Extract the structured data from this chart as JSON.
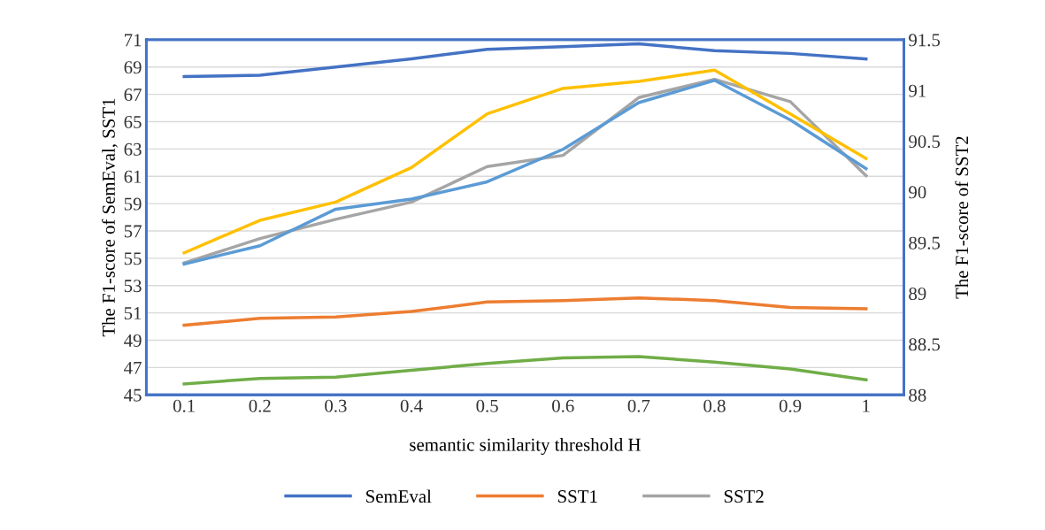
{
  "chart_data": {
    "type": "line",
    "xlabel": "semantic similarity threshold H",
    "ylabel": "The F1-score of SemEval, SST1",
    "y2label": "The F1-score of SST2",
    "categories": [
      "0.1",
      "0.2",
      "0.3",
      "0.4",
      "0.5",
      "0.6",
      "0.7",
      "0.8",
      "0.9",
      "1"
    ],
    "series": [
      {
        "name": "SemEval",
        "color": "#4472c4",
        "values": [
          68.3,
          68.4,
          69.0,
          69.6,
          70.3,
          70.5,
          70.7,
          70.2,
          70.0,
          69.6
        ]
      },
      {
        "name": "SST1",
        "color": "#ed7d31",
        "values": [
          50.1,
          50.6,
          50.7,
          51.1,
          51.8,
          51.9,
          52.1,
          51.9,
          51.4,
          51.3
        ]
      },
      {
        "color": "#70ad47",
        "values": [
          45.8,
          46.2,
          46.3,
          46.8,
          47.3,
          47.7,
          47.8,
          47.4,
          46.9,
          46.1
        ]
      },
      {
        "name": "SST2",
        "color": "#a5a5a5",
        "axis": "y2",
        "values": [
          89.3,
          89.54,
          89.73,
          89.9,
          90.25,
          90.36,
          90.93,
          91.11,
          90.89,
          90.16
        ]
      },
      {
        "color": "#ffc000",
        "axis": "y2",
        "values": [
          89.4,
          89.72,
          89.9,
          90.24,
          90.77,
          91.02,
          91.09,
          91.2,
          90.77,
          90.33
        ]
      },
      {
        "color": "#5b9bd5",
        "axis": "y2",
        "values": [
          89.29,
          89.47,
          89.83,
          89.93,
          90.1,
          90.42,
          90.88,
          91.1,
          90.71,
          90.23
        ]
      }
    ],
    "ylim": [
      45,
      71
    ],
    "yticks": [
      45,
      47,
      49,
      51,
      53,
      55,
      57,
      59,
      61,
      63,
      65,
      67,
      69,
      71
    ],
    "y2lim": [
      88,
      91.5
    ],
    "y2ticks": [
      {
        "value": 88,
        "label": "88"
      },
      {
        "value": 88.5,
        "label": "88.5"
      },
      {
        "value": 89,
        "label": "89"
      },
      {
        "value": 89.5,
        "label": "89.5"
      },
      {
        "value": 90,
        "label": "90"
      },
      {
        "value": 90.5,
        "label": "90.5"
      },
      {
        "value": 91,
        "label": "91"
      },
      {
        "value": 91.5,
        "label": "91.5"
      }
    ],
    "grid": "y",
    "legend": "bottom",
    "marker": "none",
    "line_style": "solid"
  }
}
